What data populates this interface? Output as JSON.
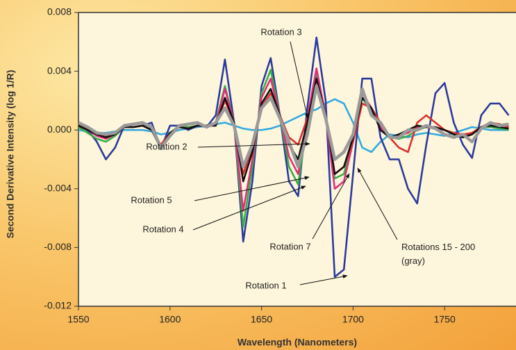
{
  "chart_data": {
    "type": "line",
    "x_label": "Wavelength (Nanometers)",
    "y_label": "Second Derivative Intensity (log 1/R)",
    "x": [
      1550,
      1555,
      1560,
      1565,
      1570,
      1575,
      1580,
      1585,
      1590,
      1595,
      1600,
      1605,
      1610,
      1615,
      1620,
      1625,
      1630,
      1635,
      1640,
      1645,
      1650,
      1655,
      1660,
      1665,
      1670,
      1675,
      1680,
      1685,
      1690,
      1695,
      1700,
      1705,
      1710,
      1715,
      1720,
      1725,
      1730,
      1735,
      1740,
      1745,
      1750,
      1755,
      1760,
      1765,
      1770,
      1775,
      1780,
      1785
    ],
    "xlim": [
      1550,
      1789
    ],
    "xticks": [
      1550,
      1600,
      1650,
      1700,
      1750
    ],
    "ylim": [
      -0.012,
      0.008
    ],
    "yticks": [
      -0.012,
      -0.008,
      -0.004,
      {
        "value": 0,
        "label": "0.000"
      },
      0.004,
      0.008
    ],
    "series": [
      {
        "name": "Rotation 3",
        "color": "#35a9de",
        "values": [
          0,
          -0.0001,
          -0.0002,
          -0.0002,
          -0.0001,
          0,
          0,
          0,
          -0.0001,
          -0.0003,
          -0.0002,
          0,
          0.0001,
          0.0002,
          0.0003,
          0.0004,
          0.0005,
          0.0003,
          0.0001,
          0,
          0,
          0.0001,
          0.0003,
          0.0006,
          0.0009,
          0.0012,
          0.0014,
          0.0018,
          0.0021,
          0.0018,
          0.0005,
          -0.0012,
          -0.0015,
          -0.0008,
          -0.0003,
          -0.0004,
          -0.0005,
          -0.0003,
          -0.0002,
          -0.0003,
          -0.0004,
          -0.0002,
          0,
          0.0002,
          0.0001,
          0,
          0,
          0
        ]
      },
      {
        "name": "Rotation 1",
        "color": "#2b3a9b",
        "values": [
          0.0003,
          0,
          -0.0008,
          -0.002,
          -0.0012,
          0.0003,
          0.0002,
          0.0003,
          0.0005,
          -0.0013,
          0.0003,
          0.0003,
          0,
          0.0003,
          0.0002,
          0.001,
          0.0048,
          0.0005,
          -0.0076,
          -0.0035,
          0.003,
          0.0049,
          0.001,
          -0.0035,
          -0.0045,
          0.0015,
          0.0063,
          0.002,
          -0.01,
          -0.0095,
          -0.003,
          0.0035,
          0.0035,
          -0.0005,
          -0.002,
          -0.002,
          -0.004,
          -0.005,
          -0.001,
          0.0025,
          0.0032,
          0.0005,
          -0.001,
          -0.0019,
          0.001,
          0.0018,
          0.0018,
          0.001
        ]
      },
      {
        "name": "Rotation 4",
        "color": "#3cab4a",
        "values": [
          0.0002,
          -0.0002,
          -0.0006,
          -0.0008,
          -0.0004,
          0.0002,
          0.0002,
          0.0003,
          0,
          -0.0013,
          -0.0002,
          0.0003,
          0.0002,
          0.0003,
          0.0003,
          0.0005,
          0.003,
          0.0005,
          -0.0066,
          -0.0025,
          0.0025,
          0.0041,
          0.001,
          -0.0025,
          -0.0037,
          0.0005,
          0.0038,
          0.001,
          -0.0033,
          -0.003,
          -0.0005,
          0.0022,
          0.0012,
          0.0005,
          -0.0005,
          -0.0006,
          -0.0004,
          0,
          0.0002,
          0.0001,
          0,
          -0.0003,
          -0.0005,
          -0.0003,
          0.0002,
          0.0002,
          0.0001,
          0
        ]
      },
      {
        "name": "Rotation 5",
        "color": "#e0307a",
        "values": [
          0.0003,
          0,
          -0.0004,
          -0.0006,
          -0.0003,
          0.0002,
          0.0002,
          0.0003,
          0,
          -0.0012,
          -0.0002,
          0.0002,
          0.0001,
          0.0003,
          0.0003,
          0.0004,
          0.0028,
          0.0005,
          -0.0055,
          -0.002,
          0.0022,
          0.0035,
          0.001,
          -0.0018,
          -0.003,
          0.0008,
          0.0042,
          0.001,
          -0.004,
          -0.0035,
          -0.0008,
          0.0025,
          0.0015,
          0.0002,
          -0.0005,
          -0.0004,
          -0.0002,
          0.0002,
          0.0002,
          0.0001,
          0,
          -0.0003,
          -0.0004,
          -0.0002,
          0.0002,
          0.0003,
          0.0004,
          0.0002
        ]
      },
      {
        "name": "Rotation 2",
        "color": "#d9302c",
        "values": [
          0.0004,
          0.0001,
          -0.0002,
          -0.0004,
          -0.0002,
          0.0002,
          0.0002,
          0.0003,
          0,
          -0.001,
          -0.0002,
          0.0002,
          0.0001,
          0.0003,
          0.0003,
          0.0003,
          0.002,
          0.0005,
          -0.003,
          -0.0012,
          0.0016,
          0.0025,
          0.001,
          -0.0005,
          -0.001,
          0.0008,
          0.003,
          0.001,
          -0.003,
          -0.0025,
          -0.0008,
          0.0018,
          0.0015,
          0.0005,
          -0.0005,
          -0.0012,
          -0.0015,
          0.0005,
          0.001,
          0.0005,
          0,
          -0.0002,
          -0.0003,
          -0.0002,
          0.0002,
          0.0005,
          0.0004,
          0.0002
        ]
      },
      {
        "name": "Rotation 7",
        "color": "#111111",
        "values": [
          0.0003,
          0,
          -0.0003,
          -0.0005,
          -0.0003,
          0.0002,
          0.0002,
          0.0003,
          0,
          -0.0012,
          -0.0002,
          0.0002,
          0.0001,
          0.0003,
          0.0003,
          0.0003,
          0.0022,
          0.0005,
          -0.0035,
          -0.0015,
          0.0018,
          0.0028,
          0.001,
          -0.001,
          -0.002,
          0.0005,
          0.0035,
          0.001,
          -0.003,
          -0.0025,
          -0.0005,
          0.0022,
          0.0015,
          0,
          -0.0005,
          -0.0003,
          0,
          0.0003,
          0.0002,
          0.0002,
          0,
          -0.0003,
          -0.0005,
          -0.0003,
          0.0002,
          0.0003,
          0.0002,
          0.0001
        ]
      },
      {
        "name": "Rotations 15 - 200 (gray)",
        "color": "#9a9a9a",
        "values": [
          0.0005,
          0.0002,
          -0.0002,
          -0.0003,
          -0.0002,
          0.0003,
          0.0004,
          0.0005,
          0.0002,
          -0.0012,
          -0.0004,
          0.0003,
          0.0004,
          0.0005,
          0.0002,
          0.0005,
          0.0015,
          0.0003,
          -0.0025,
          -0.001,
          0.0015,
          0.0022,
          0.0008,
          -0.0008,
          -0.0025,
          -0.0003,
          0.003,
          0.0008,
          -0.002,
          -0.0015,
          -0.0003,
          0.0028,
          0.001,
          0.0005,
          -0.0005,
          -0.0005,
          0,
          0,
          0.0003,
          0.0001,
          -0.0003,
          -0.0005,
          -0.0003,
          -0.0008,
          0.0001,
          0.0005,
          0.0003,
          0.0004
        ]
      }
    ]
  }
}
